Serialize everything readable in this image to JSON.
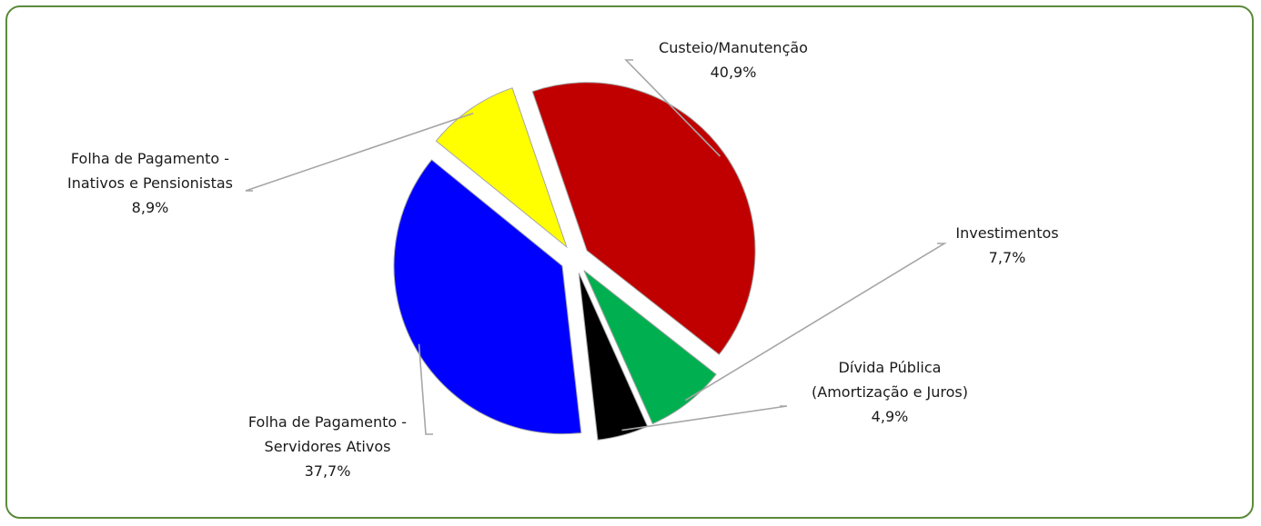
{
  "chart_data": {
    "type": "pie",
    "title": "",
    "slices": [
      {
        "label_lines": [
          "Custeio/Manutenção"
        ],
        "percent_label": "40,9%",
        "value": 40.9,
        "color": "#c00000"
      },
      {
        "label_lines": [
          "Investimentos"
        ],
        "percent_label": "7,7%",
        "value": 7.7,
        "color": "#00b050"
      },
      {
        "label_lines": [
          "Dívida Pública",
          "(Amortização e Juros)"
        ],
        "percent_label": "4,9%",
        "value": 4.9,
        "color": "#000000"
      },
      {
        "label_lines": [
          "Folha de Pagamento -",
          "Servidores Ativos"
        ],
        "percent_label": "37,7%",
        "value": 37.7,
        "color": "#0000ff"
      },
      {
        "label_lines": [
          "Folha de Pagamento -",
          "Inativos e Pensionistas"
        ],
        "percent_label": "8,9%",
        "value": 8.9,
        "color": "#ffff00"
      }
    ],
    "exploded": true,
    "legend": "none",
    "data_labels": "outside with leader lines"
  }
}
